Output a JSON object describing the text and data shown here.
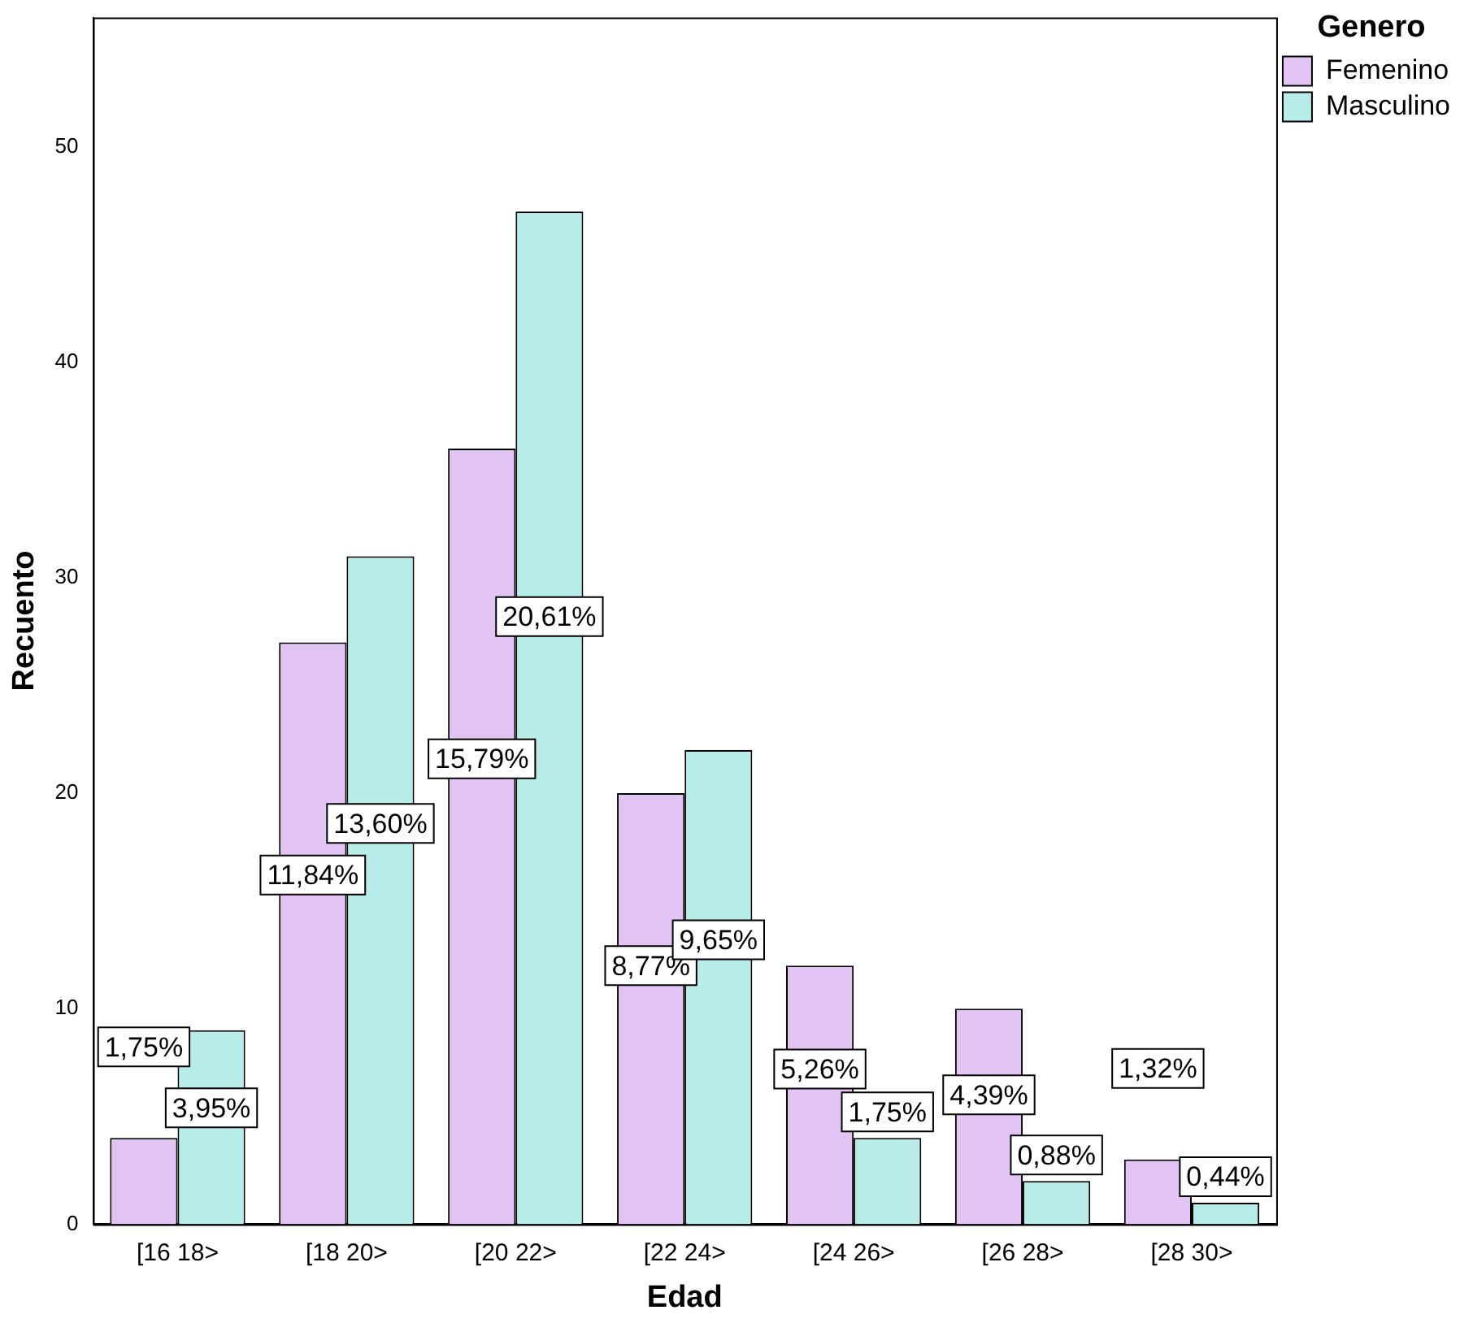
{
  "chart_data": {
    "type": "bar",
    "xlabel": "Edad",
    "ylabel": "Recuento",
    "legend_title": "Genero",
    "legend": "top right",
    "grid": false,
    "categories": [
      "[16 18>",
      "[18 20>",
      "[20 22>",
      "[22 24>",
      "[24 26>",
      "[26 28>",
      "[28 30>"
    ],
    "ylim": [
      0,
      56
    ],
    "yticks": [
      0,
      10,
      20,
      30,
      40,
      50
    ],
    "series": [
      {
        "name": "Femenino",
        "color": "#e2c4f4",
        "values": [
          4,
          27,
          36,
          20,
          12,
          10,
          3
        ]
      },
      {
        "name": "Masculino",
        "color": "#b8ece8",
        "values": [
          9,
          31,
          47,
          22,
          4,
          2,
          1
        ]
      }
    ],
    "annotations": [
      "1,75%",
      "11,84%",
      "15,79%",
      "8,77%",
      "5,26%",
      "4,39%",
      "1,32%",
      "3,95%",
      "13,60%",
      "20,61%",
      "9,65%",
      "1,75%",
      "0,88%",
      "0,44%"
    ]
  }
}
